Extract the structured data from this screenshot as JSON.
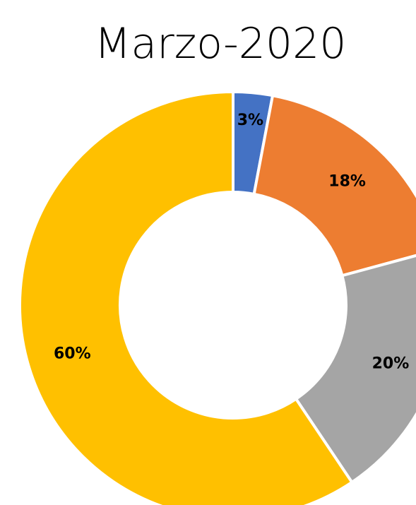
{
  "chart_data": {
    "type": "donut",
    "title": "Marzo-2020",
    "values": [
      3,
      18,
      20,
      60
    ],
    "value_labels": [
      "3%",
      "18%",
      "20%",
      "60%"
    ],
    "colors": [
      "#4472c4",
      "#ed7d31",
      "#a5a5a5",
      "#ffc000"
    ]
  }
}
